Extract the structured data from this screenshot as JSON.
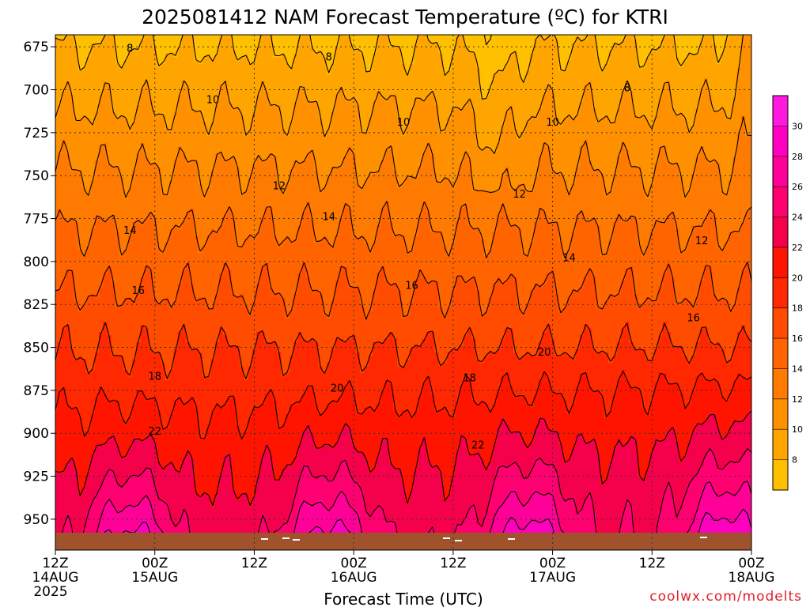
{
  "chart_data": {
    "type": "time-height contour",
    "title": "2025081412 NAM Forecast Temperature (ºC) for KTRI",
    "xlabel": "Forecast Time (UTC)",
    "credit": "coolwx.com/modelts",
    "y_ticks": [
      675,
      700,
      725,
      750,
      775,
      800,
      825,
      850,
      875,
      900,
      925,
      950
    ],
    "y_range_hpa": [
      668,
      968
    ],
    "x_range_hours": [
      0,
      84
    ],
    "x_ticks": [
      {
        "hour": 0,
        "l1": "12Z",
        "l2": "14AUG",
        "l3": "2025"
      },
      {
        "hour": 12,
        "l1": "00Z",
        "l2": "15AUG",
        "l3": ""
      },
      {
        "hour": 24,
        "l1": "12Z",
        "l2": "",
        "l3": ""
      },
      {
        "hour": 36,
        "l1": "00Z",
        "l2": "16AUG",
        "l3": ""
      },
      {
        "hour": 48,
        "l1": "12Z",
        "l2": "",
        "l3": ""
      },
      {
        "hour": 60,
        "l1": "00Z",
        "l2": "17AUG",
        "l3": ""
      },
      {
        "hour": 72,
        "l1": "12Z",
        "l2": "",
        "l3": ""
      },
      {
        "hour": 84,
        "l1": "00Z",
        "l2": "18AUG",
        "l3": ""
      }
    ],
    "colorbar": {
      "ticks": [
        8,
        10,
        12,
        14,
        16,
        18,
        20,
        22,
        24,
        26,
        28,
        30
      ],
      "levels": [
        6,
        8,
        10,
        12,
        14,
        16,
        18,
        20,
        22,
        24,
        26,
        28,
        30,
        32
      ],
      "colors": [
        "#ffc000",
        "#ffa500",
        "#ff9000",
        "#ff7a00",
        "#ff6400",
        "#ff4c00",
        "#ff2800",
        "#ff1400",
        "#f5004a",
        "#ff0070",
        "#ff0098",
        "#ff00c0",
        "#ff18e0"
      ]
    },
    "contour_labels": [
      {
        "text": "8",
        "h": 9,
        "p": 676
      },
      {
        "text": "8",
        "h": 33,
        "p": 681
      },
      {
        "text": "8",
        "h": 69,
        "p": 699
      },
      {
        "text": "10",
        "h": 19,
        "p": 706
      },
      {
        "text": "10",
        "h": 42,
        "p": 719
      },
      {
        "text": "10",
        "h": 60,
        "p": 719
      },
      {
        "text": "12",
        "h": 27,
        "p": 756
      },
      {
        "text": "12",
        "h": 56,
        "p": 761
      },
      {
        "text": "12",
        "h": 78,
        "p": 788
      },
      {
        "text": "14",
        "h": 9,
        "p": 782
      },
      {
        "text": "14",
        "h": 33,
        "p": 774
      },
      {
        "text": "14",
        "h": 62,
        "p": 798
      },
      {
        "text": "16",
        "h": 10,
        "p": 817
      },
      {
        "text": "16",
        "h": 43,
        "p": 814
      },
      {
        "text": "16",
        "h": 77,
        "p": 833
      },
      {
        "text": "18",
        "h": 12,
        "p": 867
      },
      {
        "text": "18",
        "h": 50,
        "p": 868
      },
      {
        "text": "20",
        "h": 34,
        "p": 874
      },
      {
        "text": "20",
        "h": 59,
        "p": 853
      },
      {
        "text": "22",
        "h": 12,
        "p": 899
      },
      {
        "text": "22",
        "h": 51,
        "p": 907
      }
    ]
  }
}
